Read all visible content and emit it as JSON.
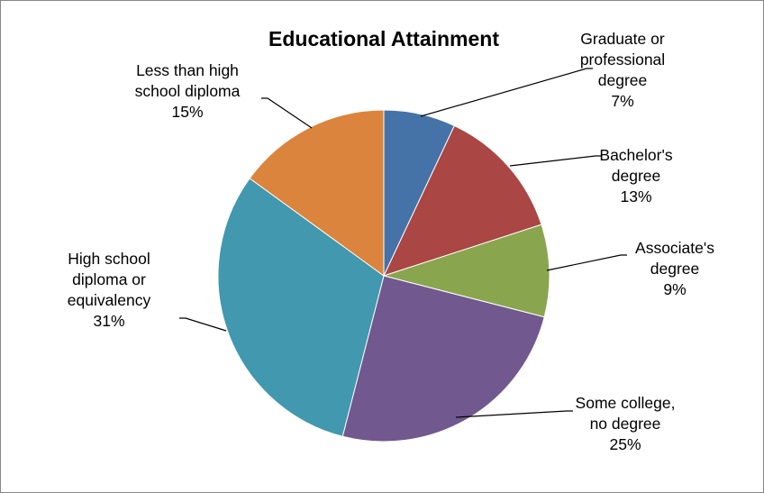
{
  "chart_data": {
    "type": "pie",
    "title": "Educational Attainment",
    "start_angle_deg": 0,
    "direction": "clockwise",
    "legend": "none",
    "slices": [
      {
        "label_lines": [
          "Graduate or",
          "professional",
          "degree"
        ],
        "pct_label": "7%",
        "value": 7,
        "color": "#4572A7"
      },
      {
        "label_lines": [
          "Bachelor's",
          "degree"
        ],
        "pct_label": "13%",
        "value": 13,
        "color": "#AA4643"
      },
      {
        "label_lines": [
          "Associate's",
          "degree"
        ],
        "pct_label": "9%",
        "value": 9,
        "color": "#89A54E"
      },
      {
        "label_lines": [
          "Some college,",
          "no degree"
        ],
        "pct_label": "25%",
        "value": 25,
        "color": "#71588F"
      },
      {
        "label_lines": [
          "High school",
          "diploma or",
          "equivalency"
        ],
        "pct_label": "31%",
        "value": 31,
        "color": "#4198AF"
      },
      {
        "label_lines": [
          "Less than high",
          "school diploma"
        ],
        "pct_label": "15%",
        "value": 15,
        "color": "#DB843D"
      }
    ]
  }
}
